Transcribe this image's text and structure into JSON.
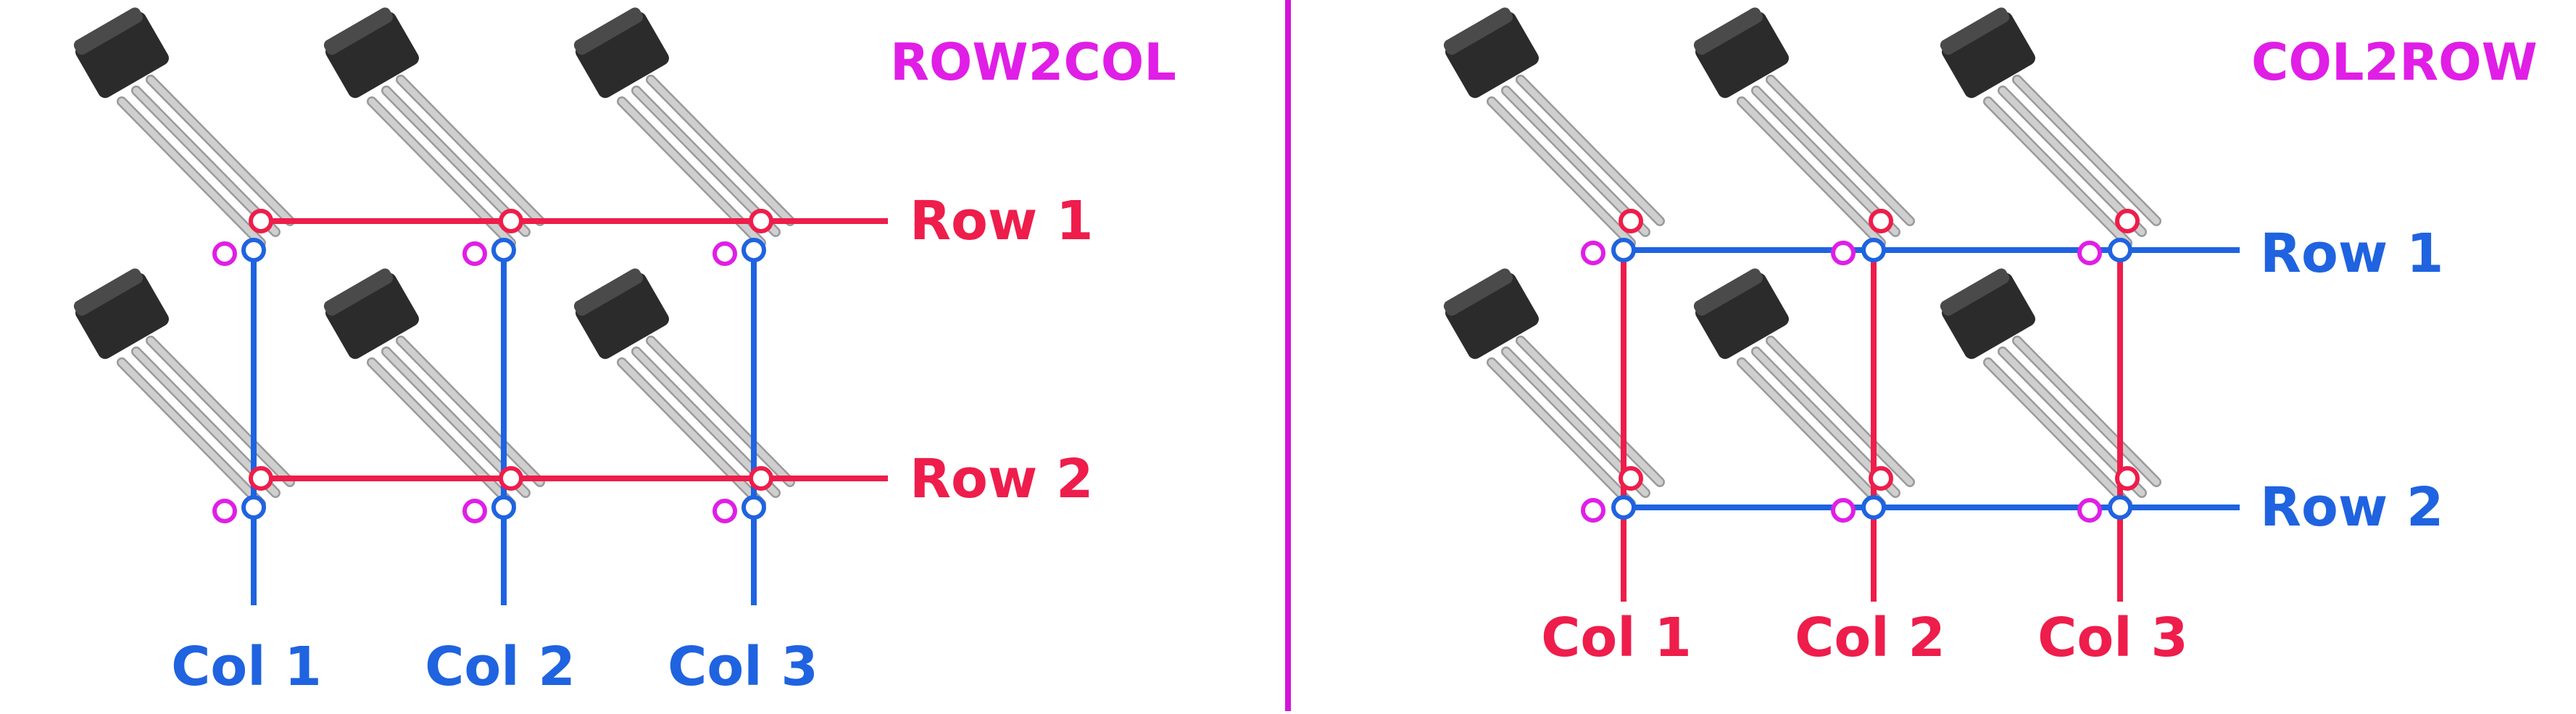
{
  "colors": {
    "red": "#ee1d4b",
    "blue": "#1f63e0",
    "magenta": "#e01ee6",
    "divider": "#d414d8",
    "sensor_body": "#2b2b2b",
    "sensor_leg": "#cfcfcf"
  },
  "panels": [
    {
      "id": "row2col",
      "title": "ROW2COL",
      "row_color": "red",
      "col_color": "blue",
      "rows": [
        "Row 1",
        "Row 2"
      ],
      "cols": [
        "Col 1",
        "Col 2",
        "Col 3"
      ]
    },
    {
      "id": "col2row",
      "title": "COL2ROW",
      "row_color": "blue",
      "col_color": "red",
      "rows": [
        "Row 1",
        "Row 2"
      ],
      "cols": [
        "Col 1",
        "Col 2",
        "Col 3"
      ]
    }
  ]
}
